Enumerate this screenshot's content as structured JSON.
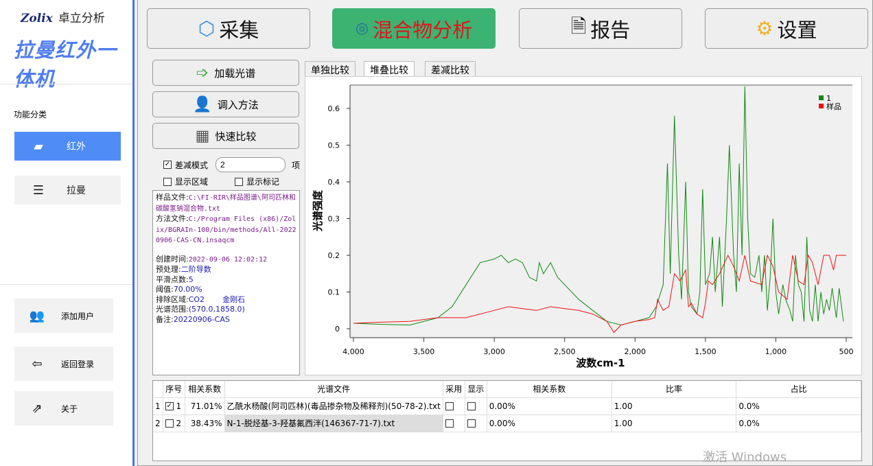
{
  "sidebar": {
    "brand": "Zolix",
    "brand_cn": "卓立分析",
    "product": "拉曼红外一体机",
    "section": "功能分类",
    "items": [
      {
        "label": "红外",
        "icon": "cube-icon",
        "active": true
      },
      {
        "label": "拉曼",
        "icon": "layers-icon",
        "active": false
      }
    ],
    "bottom": [
      {
        "label": "添加用户",
        "icon": "users-icon"
      },
      {
        "label": "返回登录",
        "icon": "logout-icon"
      },
      {
        "label": "关于",
        "icon": "about-icon"
      }
    ]
  },
  "topnav": [
    {
      "label": "采集",
      "icon": "box-icon"
    },
    {
      "label": "混合物分析",
      "icon": "analysis-icon",
      "active": true
    },
    {
      "label": "报告",
      "icon": "report-icon"
    },
    {
      "label": "设置",
      "icon": "gear-icon"
    }
  ],
  "accent": {
    "active_bg": "#3cb371",
    "active_text": "#e0141a",
    "sidebar_active": "#4f8cf6"
  },
  "left": {
    "buttons": [
      {
        "label": "加载光谱",
        "icon": "load-spectrum-icon"
      },
      {
        "label": "调入方法",
        "icon": "method-icon"
      },
      {
        "label": "快速比较",
        "icon": "calculator-icon"
      }
    ],
    "diff_mode": {
      "label": "差减模式",
      "checked": true,
      "value": "2",
      "unit": "项"
    },
    "show_region": {
      "label": "显示区域",
      "checked": false
    },
    "show_marks": {
      "label": "显示标记",
      "checked": false
    }
  },
  "info": {
    "sample_label": "样品文件:",
    "sample_value": "C:\\FI-RIR\\样品图谱\\阿司匹林和碳酸氢钠混合物.txt",
    "method_label": "方法文件:",
    "method_value": "C:/Program Files (x86)/Zolix/BGRAIn-100/bin/methods/All-20220906-CAS-CN.insaqcm",
    "created_label": "创建时间:",
    "created_value": "2022-09-06 12:02:12",
    "pre_label": "预处理:",
    "pre_value": "二阶导数",
    "smooth_label": "平滑点数:",
    "smooth_value": "5",
    "thr_label": "阈值:",
    "thr_value": "70.00%",
    "excl_label": "排除区域:",
    "excl_value": "CO2",
    "excl_value2": "金刚石",
    "range_label": "光谱范围:",
    "range_value": "(570.0,1858.0)",
    "note_label": "备注:",
    "note_value": "20220906-CAS"
  },
  "tabs": [
    {
      "label": "单独比较"
    },
    {
      "label": "堆叠比较",
      "active": true
    },
    {
      "label": "差减比较"
    }
  ],
  "chart_data": {
    "type": "line",
    "xlabel": "波数cm-1",
    "ylabel": "光谱强度",
    "xlim": [
      4000,
      500
    ],
    "ylim": [
      -0.02,
      0.67
    ],
    "xticks": [
      "4,000",
      "3,500",
      "3,000",
      "2,500",
      "2,000",
      "1,500",
      "1,000",
      "500"
    ],
    "yticks": [
      "0",
      "0.1",
      "0.2",
      "0.3",
      "0.4",
      "0.5",
      "0.6"
    ],
    "legend_position": "top-right",
    "grid": false,
    "series": [
      {
        "name": "1",
        "color": "#118811",
        "points": [
          [
            4000,
            0.015
          ],
          [
            3800,
            0.012
          ],
          [
            3600,
            0.01
          ],
          [
            3400,
            0.03
          ],
          [
            3300,
            0.06
          ],
          [
            3200,
            0.12
          ],
          [
            3100,
            0.18
          ],
          [
            3000,
            0.19
          ],
          [
            2950,
            0.2
          ],
          [
            2900,
            0.18
          ],
          [
            2850,
            0.19
          ],
          [
            2800,
            0.18
          ],
          [
            2750,
            0.14
          ],
          [
            2700,
            0.13
          ],
          [
            2680,
            0.18
          ],
          [
            2650,
            0.15
          ],
          [
            2600,
            0.18
          ],
          [
            2550,
            0.14
          ],
          [
            2500,
            0.12
          ],
          [
            2400,
            0.08
          ],
          [
            2300,
            0.05
          ],
          [
            2200,
            0.02
          ],
          [
            2100,
            0.01
          ],
          [
            2000,
            0.02
          ],
          [
            1900,
            0.03
          ],
          [
            1850,
            0.06
          ],
          [
            1800,
            0.12
          ],
          [
            1770,
            0.45
          ],
          [
            1750,
            0.15
          ],
          [
            1720,
            0.58
          ],
          [
            1690,
            0.2
          ],
          [
            1670,
            0.08
          ],
          [
            1640,
            0.4
          ],
          [
            1620,
            0.1
          ],
          [
            1600,
            0.06
          ],
          [
            1560,
            0.04
          ],
          [
            1540,
            0.1
          ],
          [
            1520,
            0.38
          ],
          [
            1500,
            0.12
          ],
          [
            1470,
            0.15
          ],
          [
            1450,
            0.25
          ],
          [
            1430,
            0.1
          ],
          [
            1400,
            0.25
          ],
          [
            1380,
            0.06
          ],
          [
            1350,
            0.3
          ],
          [
            1330,
            0.5
          ],
          [
            1300,
            0.2
          ],
          [
            1280,
            0.1
          ],
          [
            1260,
            0.45
          ],
          [
            1240,
            0.2
          ],
          [
            1220,
            0.66
          ],
          [
            1200,
            0.3
          ],
          [
            1180,
            0.15
          ],
          [
            1150,
            0.14
          ],
          [
            1120,
            0.2
          ],
          [
            1100,
            0.1
          ],
          [
            1080,
            0.2
          ],
          [
            1060,
            0.05
          ],
          [
            1040,
            0.14
          ],
          [
            1020,
            0.3
          ],
          [
            1000,
            0.1
          ],
          [
            980,
            0.04
          ],
          [
            950,
            0.12
          ],
          [
            930,
            0.08
          ],
          [
            900,
            0.05
          ],
          [
            880,
            0.02
          ],
          [
            860,
            0.2
          ],
          [
            840,
            0.12
          ],
          [
            820,
            0.1
          ],
          [
            800,
            0.02
          ],
          [
            780,
            0.25
          ],
          [
            760,
            0.05
          ],
          [
            740,
            0.02
          ],
          [
            720,
            0.12
          ],
          [
            700,
            0.02
          ],
          [
            680,
            0.1
          ],
          [
            660,
            0.04
          ],
          [
            640,
            0.08
          ],
          [
            620,
            0.05
          ],
          [
            600,
            0.11
          ],
          [
            570,
            0.03
          ],
          [
            550,
            0.11
          ],
          [
            520,
            0.02
          ]
        ]
      },
      {
        "name": "样品",
        "color": "#ee1111",
        "points": [
          [
            4000,
            0.015
          ],
          [
            3800,
            0.018
          ],
          [
            3600,
            0.02
          ],
          [
            3400,
            0.03
          ],
          [
            3200,
            0.03
          ],
          [
            3000,
            0.05
          ],
          [
            2900,
            0.06
          ],
          [
            2800,
            0.055
          ],
          [
            2700,
            0.05
          ],
          [
            2600,
            0.06
          ],
          [
            2500,
            0.055
          ],
          [
            2400,
            0.05
          ],
          [
            2300,
            0.04
          ],
          [
            2200,
            0.02
          ],
          [
            2150,
            -0.01
          ],
          [
            2100,
            0.01
          ],
          [
            2000,
            0.02
          ],
          [
            1900,
            0.025
          ],
          [
            1860,
            0.03
          ],
          [
            1840,
            0.08
          ],
          [
            1800,
            0.05
          ],
          [
            1760,
            0.06
          ],
          [
            1720,
            0.15
          ],
          [
            1680,
            0.13
          ],
          [
            1640,
            0.16
          ],
          [
            1620,
            0.06
          ],
          [
            1600,
            0.07
          ],
          [
            1560,
            0.04
          ],
          [
            1520,
            0.03
          ],
          [
            1500,
            0.07
          ],
          [
            1480,
            0.13
          ],
          [
            1450,
            0.12
          ],
          [
            1400,
            0.15
          ],
          [
            1340,
            0.2
          ],
          [
            1300,
            0.17
          ],
          [
            1260,
            0.13
          ],
          [
            1220,
            0.2
          ],
          [
            1180,
            0.13
          ],
          [
            1100,
            0.12
          ],
          [
            1060,
            0.2
          ],
          [
            1020,
            0.17
          ],
          [
            980,
            0.1
          ],
          [
            920,
            0.08
          ],
          [
            880,
            0.2
          ],
          [
            840,
            0.13
          ],
          [
            800,
            0.12
          ],
          [
            770,
            0.2
          ],
          [
            740,
            0.18
          ],
          [
            700,
            0.12
          ],
          [
            660,
            0.2
          ],
          [
            620,
            0.2
          ],
          [
            590,
            0.16
          ],
          [
            570,
            0.2
          ],
          [
            500,
            0.2
          ]
        ]
      }
    ]
  },
  "table": {
    "headers": [
      "",
      "序号",
      "相关系数",
      "光谱文件",
      "采用",
      "显示",
      "相关系数",
      "比率",
      "占比"
    ],
    "rows": [
      {
        "idx": "1",
        "checked": true,
        "no": "1",
        "corr": "71.01%",
        "file": "乙酰水杨酸(阿司匹林)(毒品掺杂物及稀释剂)(50-78-2).txt",
        "use": false,
        "show": false,
        "corr2": "0.00%",
        "ratio": "1.00",
        "share": "0.0%"
      },
      {
        "idx": "2",
        "checked": false,
        "no": "2",
        "corr": "38.43%",
        "file": "N-1-脱烃基-3-羟基氟西泮(146367-71-7).txt",
        "use": false,
        "show": false,
        "corr2": "0.00%",
        "ratio": "1.00",
        "share": "0.0%"
      }
    ]
  },
  "watermark": "激活 Windows"
}
